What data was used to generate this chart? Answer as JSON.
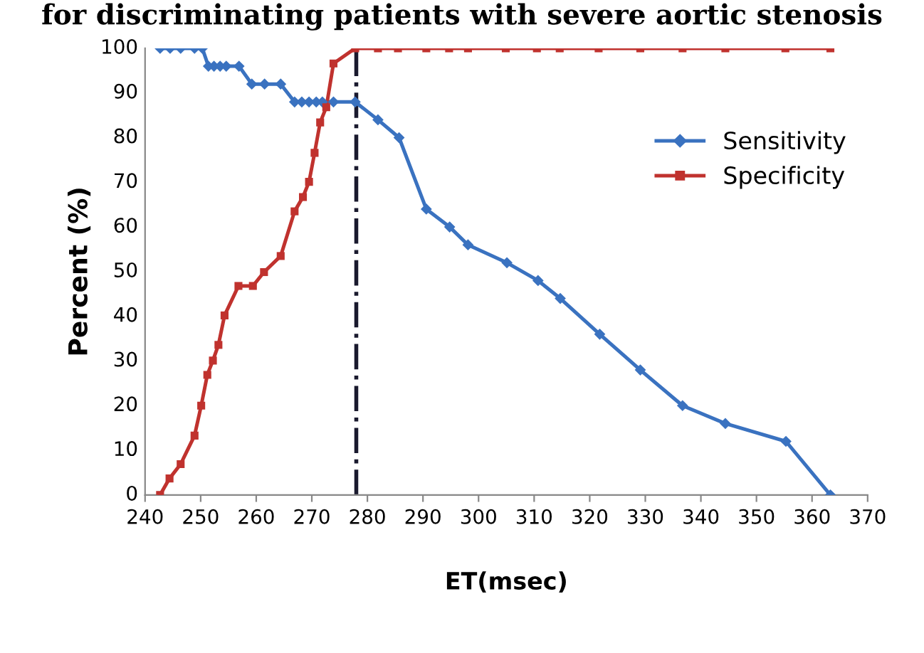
{
  "chart_data": {
    "type": "line",
    "title": "for discriminating patients with severe aortic stenosis",
    "xlabel": "ET(msec)",
    "ylabel": "Percent (%)",
    "xlim": [
      240,
      370
    ],
    "xticks": [
      240,
      250,
      260,
      270,
      280,
      290,
      300,
      310,
      320,
      330,
      340,
      350,
      360,
      370
    ],
    "ylim": [
      0,
      100
    ],
    "yticks": [
      0,
      10,
      20,
      30,
      40,
      50,
      60,
      70,
      80,
      90,
      100
    ],
    "grid": false,
    "legend": "right",
    "series": [
      {
        "name": "Sensitivity",
        "color": "#3a72c0",
        "marker": "diamond",
        "x": [
          242.7,
          244.5,
          246.4,
          248.9,
          250.3,
          251.4,
          252.4,
          253.5,
          254.6,
          256.9,
          259.2,
          261.5,
          264.4,
          266.9,
          268.2,
          269.5,
          270.8,
          271.9,
          273.9,
          277.8,
          281.9,
          285.7,
          290.6,
          294.8,
          298.1,
          305.1,
          310.7,
          314.7,
          321.8,
          329.1,
          336.7,
          344.4,
          355.3,
          363.3
        ],
        "values": [
          100,
          100,
          100,
          100,
          100,
          96,
          96,
          96,
          96,
          96,
          92,
          92,
          92,
          88,
          88,
          88,
          88,
          88,
          88,
          88,
          84,
          80,
          64,
          60,
          56,
          52,
          48,
          44,
          36,
          28,
          20,
          16,
          12,
          0
        ]
      },
      {
        "name": "Specificity",
        "color": "#c0322e",
        "marker": "square",
        "x": [
          242.7,
          244.4,
          246.4,
          248.9,
          250.1,
          251.2,
          252.2,
          253.2,
          254.3,
          256.8,
          259.4,
          261.4,
          264.4,
          266.9,
          268.4,
          269.5,
          270.5,
          271.5,
          272.6,
          273.9,
          277.8,
          281.9,
          285.5,
          290.6,
          294.7,
          298.1,
          304.9,
          310.5,
          314.6,
          321.6,
          329.1,
          336.7,
          344.4,
          355.2,
          363.3
        ],
        "values": [
          0,
          3.7,
          6.9,
          13.3,
          20,
          26.9,
          30.1,
          33.6,
          40.2,
          46.8,
          46.8,
          49.9,
          53.5,
          63.5,
          66.7,
          70.1,
          76.6,
          83.4,
          86.8,
          96.6,
          100,
          100,
          100,
          100,
          100,
          100,
          100,
          100,
          100,
          100,
          100,
          100,
          100,
          100,
          100
        ]
      }
    ],
    "ref_lines": [
      {
        "axis": "x",
        "value": 278,
        "color": "#1a1a2e",
        "line_style": "dashdot"
      }
    ]
  }
}
